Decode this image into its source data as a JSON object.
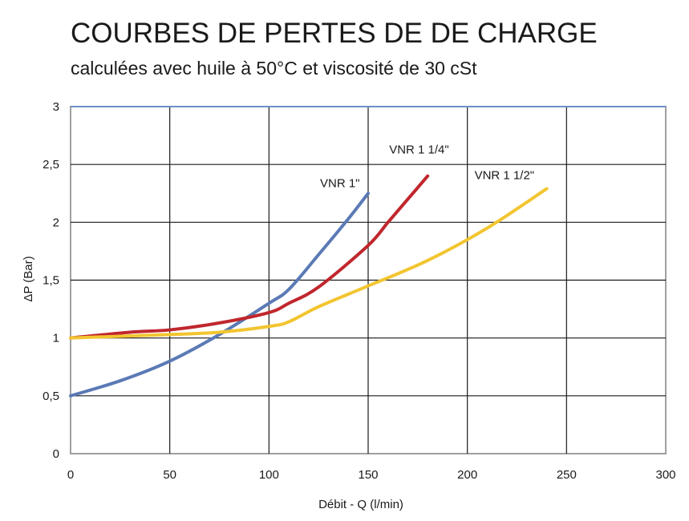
{
  "title": "COURBES DE PERTES DE DE CHARGE",
  "subtitle": "calculées avec huile à 50°C et viscosité de 30 cSt",
  "chart_data": {
    "type": "line",
    "xlabel": "Débit - Q (l/min)",
    "ylabel": "ΔP (Bar)",
    "xlim": [
      0,
      300
    ],
    "ylim": [
      0,
      3
    ],
    "xticks": [
      0,
      50,
      100,
      150,
      200,
      250,
      300
    ],
    "xtick_labels": [
      "0",
      "50",
      "100",
      "150",
      "200",
      "250",
      "300"
    ],
    "yticks": [
      0,
      0.5,
      1,
      1.5,
      2,
      2.5,
      3
    ],
    "ytick_labels": [
      "0",
      "0,5",
      "1",
      "1,5",
      "2",
      "2,5",
      "3"
    ],
    "grid": true,
    "legend": "none",
    "series": [
      {
        "name": "VNR 1\"",
        "color": "#5b7ab5",
        "x": [
          0,
          25,
          50,
          75,
          100,
          110,
          125,
          140,
          150
        ],
        "y": [
          0.5,
          0.63,
          0.8,
          1.03,
          1.3,
          1.42,
          1.72,
          2.03,
          2.25
        ]
      },
      {
        "name": "VNR 1 1/4\"",
        "color": "#c0272d",
        "x": [
          0,
          30,
          50,
          75,
          100,
          110,
          125,
          150,
          160,
          170,
          180
        ],
        "y": [
          1.0,
          1.05,
          1.07,
          1.13,
          1.22,
          1.3,
          1.44,
          1.8,
          2.0,
          2.2,
          2.4
        ]
      },
      {
        "name": "VNR 1 1/2\"",
        "color": "#f2c530",
        "x": [
          0,
          50,
          75,
          100,
          110,
          125,
          150,
          180,
          210,
          240
        ],
        "y": [
          1.0,
          1.03,
          1.05,
          1.1,
          1.14,
          1.27,
          1.45,
          1.67,
          1.95,
          2.29
        ]
      }
    ]
  }
}
